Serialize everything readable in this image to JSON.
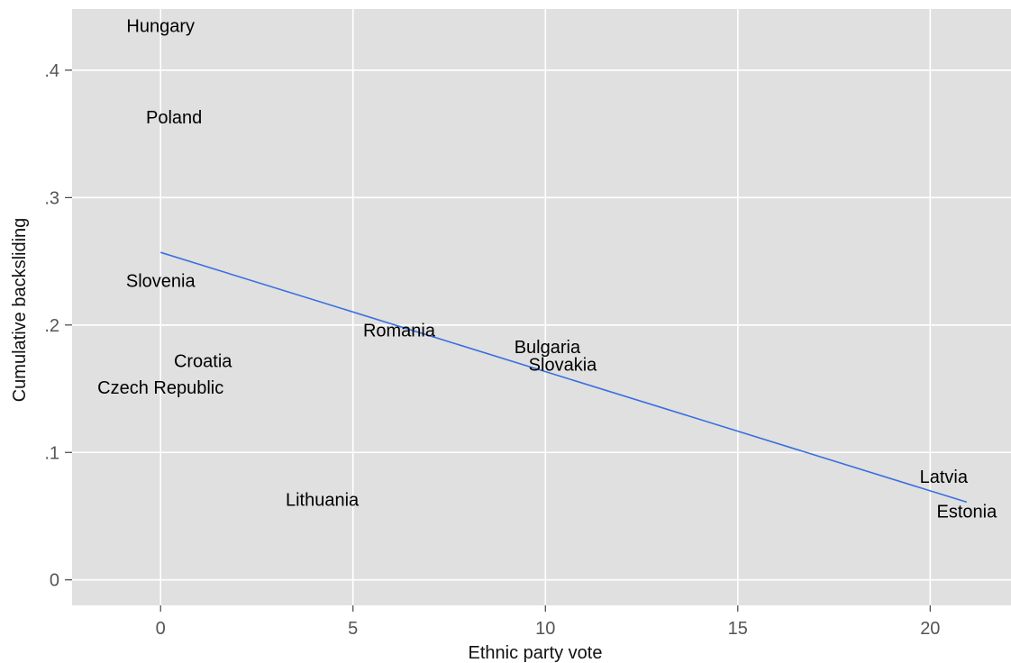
{
  "chart_data": {
    "type": "scatter",
    "title": "",
    "xlabel": "Ethnic party vote",
    "ylabel": "Cumulative backsliding",
    "xlim": [
      -2.3,
      22.1
    ],
    "ylim": [
      -0.02,
      0.448
    ],
    "x_ticks": [
      {
        "value": 0,
        "label": "0"
      },
      {
        "value": 5,
        "label": "5"
      },
      {
        "value": 10,
        "label": "10"
      },
      {
        "value": 15,
        "label": "15"
      },
      {
        "value": 20,
        "label": "20"
      }
    ],
    "y_ticks": [
      {
        "value": 0,
        "label": "0"
      },
      {
        "value": 0.1,
        "label": ".1"
      },
      {
        "value": 0.2,
        "label": ".2"
      },
      {
        "value": 0.3,
        "label": ".3"
      },
      {
        "value": 0.4,
        "label": ".4"
      }
    ],
    "grid": true,
    "background_color": "#e0e0e0",
    "fit_line_color": "#3b6fe0",
    "points": [
      {
        "label": "Hungary",
        "x": 0.0,
        "y": 0.435
      },
      {
        "label": "Poland",
        "x": 0.35,
        "y": 0.363
      },
      {
        "label": "Slovenia",
        "x": 0.0,
        "y": 0.235
      },
      {
        "label": "Croatia",
        "x": 1.1,
        "y": 0.172
      },
      {
        "label": "Czech Republic",
        "x": 0.0,
        "y": 0.151
      },
      {
        "label": "Lithuania",
        "x": 4.2,
        "y": 0.063
      },
      {
        "label": "Romania",
        "x": 6.2,
        "y": 0.196
      },
      {
        "label": "Bulgaria",
        "x": 10.05,
        "y": 0.183
      },
      {
        "label": "Slovakia",
        "x": 10.45,
        "y": 0.169
      },
      {
        "label": "Latvia",
        "x": 20.35,
        "y": 0.081
      },
      {
        "label": "Estonia",
        "x": 20.95,
        "y": 0.054
      }
    ],
    "fit_line": {
      "x": [
        0,
        20.95
      ],
      "y": [
        0.257,
        0.061
      ]
    }
  }
}
